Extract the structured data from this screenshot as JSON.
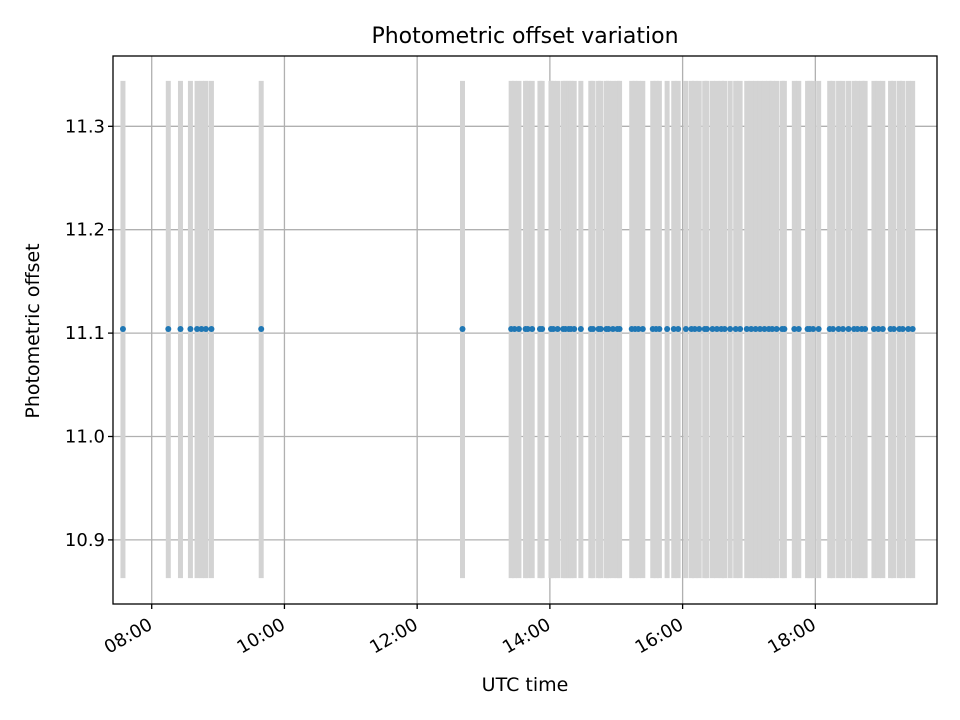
{
  "chart_data": {
    "type": "scatter",
    "title": "Photometric offset variation",
    "xlabel": "UTC time",
    "ylabel": "Photometric offset",
    "xlim": [
      "07:25",
      "19:50"
    ],
    "ylim": [
      10.838,
      11.368
    ],
    "x_ticks": [
      "08:00",
      "10:00",
      "12:00",
      "14:00",
      "16:00",
      "18:00"
    ],
    "y_ticks": [
      "10.9",
      "11.0",
      "11.1",
      "11.2",
      "11.3"
    ],
    "grid": true,
    "series": [
      {
        "marker": "point",
        "color": "#1f77b4",
        "x": [
          "07:34",
          "08:15",
          "08:26",
          "08:35",
          "08:41",
          "08:45",
          "08:49",
          "08:54",
          "09:39",
          "12:41",
          "13:25",
          "13:28",
          "13:32",
          "13:38",
          "13:40",
          "13:44",
          "13:51",
          "13:53",
          "14:01",
          "14:03",
          "14:07",
          "14:12",
          "14:14",
          "14:17",
          "14:19",
          "14:22",
          "14:28",
          "14:37",
          "14:39",
          "14:44",
          "14:46",
          "14:51",
          "14:53",
          "14:57",
          "15:01",
          "15:03",
          "15:14",
          "15:17",
          "15:20",
          "15:24",
          "15:33",
          "15:36",
          "15:39",
          "15:46",
          "15:52",
          "15:56",
          "16:03",
          "16:08",
          "16:11",
          "16:15",
          "16:20",
          "16:22",
          "16:27",
          "16:31",
          "16:35",
          "16:38",
          "16:43",
          "16:48",
          "16:52",
          "16:58",
          "17:02",
          "17:06",
          "17:10",
          "17:14",
          "17:18",
          "17:21",
          "17:25",
          "17:30",
          "17:32",
          "17:41",
          "17:45",
          "17:53",
          "17:55",
          "17:58",
          "18:03",
          "18:13",
          "18:16",
          "18:21",
          "18:25",
          "18:30",
          "18:35",
          "18:38",
          "18:42",
          "18:45",
          "18:53",
          "18:57",
          "19:01",
          "19:08",
          "19:11",
          "19:16",
          "19:19",
          "19:24",
          "19:28"
        ],
        "y": [
          11.104,
          11.104,
          11.104,
          11.104,
          11.104,
          11.104,
          11.104,
          11.104,
          11.104,
          11.104,
          11.104,
          11.104,
          11.104,
          11.104,
          11.104,
          11.104,
          11.104,
          11.104,
          11.104,
          11.104,
          11.104,
          11.104,
          11.104,
          11.104,
          11.104,
          11.104,
          11.104,
          11.104,
          11.104,
          11.104,
          11.104,
          11.104,
          11.104,
          11.104,
          11.104,
          11.104,
          11.104,
          11.104,
          11.104,
          11.104,
          11.104,
          11.104,
          11.104,
          11.104,
          11.104,
          11.104,
          11.104,
          11.104,
          11.104,
          11.104,
          11.104,
          11.104,
          11.104,
          11.104,
          11.104,
          11.104,
          11.104,
          11.104,
          11.104,
          11.104,
          11.104,
          11.104,
          11.104,
          11.104,
          11.104,
          11.104,
          11.104,
          11.104,
          11.104,
          11.104,
          11.104,
          11.104,
          11.104,
          11.104,
          11.104,
          11.104,
          11.104,
          11.104,
          11.104,
          11.104,
          11.104,
          11.104,
          11.104,
          11.104,
          11.104,
          11.104,
          11.104,
          11.104,
          11.104,
          11.104,
          11.104,
          11.104,
          11.104
        ],
        "yerr_low": 10.863,
        "yerr_high": 11.344,
        "errorbar_color": "#d3d3d3"
      }
    ]
  }
}
